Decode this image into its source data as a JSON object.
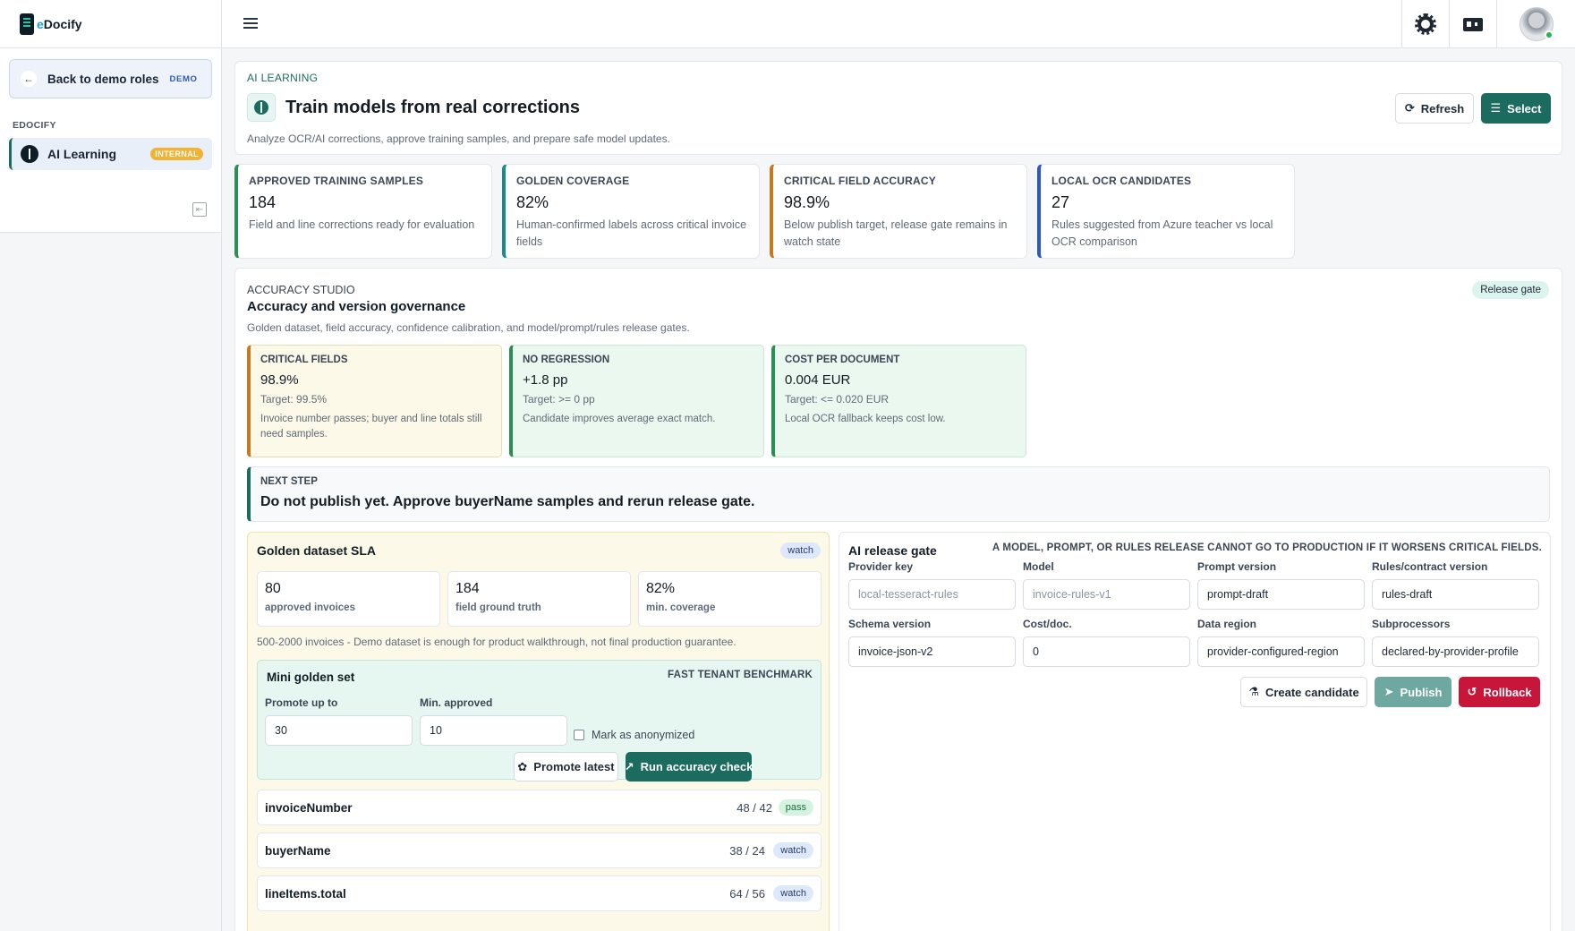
{
  "app": {
    "logo_prefix": "e",
    "logo_suffix": "Docify"
  },
  "sidebar": {
    "back_label": "Back to demo roles",
    "back_tag": "DEMO",
    "section": "EDOCIFY",
    "items": [
      {
        "label": "AI Learning",
        "tag": "INTERNAL",
        "icon": "brain-icon"
      }
    ]
  },
  "topbar": {
    "icons": [
      "menu-icon",
      "gear-icon",
      "id-card-icon",
      "avatar"
    ]
  },
  "header": {
    "kicker": "AI LEARNING",
    "title": "Train models from real corrections",
    "subtitle": "Analyze OCR/AI corrections, approve training samples, and prepare safe model updates.",
    "refresh_label": "Refresh",
    "select_label": "Select"
  },
  "stats": [
    {
      "label": "APPROVED TRAINING SAMPLES",
      "value": "184",
      "desc": "Field and line corrections ready for evaluation",
      "accent": "#2a8f55"
    },
    {
      "label": "GOLDEN COVERAGE",
      "value": "82%",
      "desc": "Human-confirmed labels across critical invoice fields",
      "accent": "#1b8a8a"
    },
    {
      "label": "CRITICAL FIELD ACCURACY",
      "value": "98.9%",
      "desc": "Below publish target, release gate remains in watch state",
      "accent": "#c47a1e"
    },
    {
      "label": "LOCAL OCR CANDIDATES",
      "value": "27",
      "desc": "Rules suggested from Azure teacher vs local OCR comparison",
      "accent": "#2b59c3"
    }
  ],
  "studio": {
    "kicker": "ACCURACY STUDIO",
    "title": "Accuracy and version governance",
    "subtitle": "Golden dataset, field accuracy, confidence calibration, and model/prompt/rules release gates.",
    "tag": "Release gate",
    "metrics": [
      {
        "label": "CRITICAL FIELDS",
        "value": "98.9%",
        "target": "Target: 99.5%",
        "desc": "Invoice number passes; buyer and line totals still need samples.",
        "bg": "#fdf9e8",
        "accent": "#c47a1e"
      },
      {
        "label": "NO REGRESSION",
        "value": "+1.8 pp",
        "target": "Target: >= 0 pp",
        "desc": "Candidate improves average exact match.",
        "bg": "#eaf8ef",
        "accent": "#2a8f55"
      },
      {
        "label": "COST PER DOCUMENT",
        "value": "0.004 EUR",
        "target": "Target: <= 0.020 EUR",
        "desc": "Local OCR fallback keeps cost low.",
        "bg": "#eaf8ef",
        "accent": "#2a8f55"
      }
    ],
    "next_step": {
      "label": "NEXT STEP",
      "text": "Do not publish yet. Approve buyerName samples and rerun release gate."
    }
  },
  "golden": {
    "title": "Golden dataset SLA",
    "status": "watch",
    "stats": [
      {
        "value": "80",
        "label": "approved invoices"
      },
      {
        "value": "184",
        "label": "field ground truth"
      },
      {
        "value": "82%",
        "label": "min. coverage"
      }
    ],
    "note": "500-2000 invoices - Demo dataset is enough for product walkthrough, not final production guarantee.",
    "mini": {
      "title": "Mini golden set",
      "tag": "FAST TENANT BENCHMARK",
      "promote_label": "Promote up to",
      "promote_value": "30",
      "min_label": "Min. approved",
      "min_value": "10",
      "anonymized_label": "Mark as anonymized",
      "promote_btn": "Promote latest",
      "run_btn": "Run accuracy check"
    },
    "fields": [
      {
        "name": "invoiceNumber",
        "count": "48 / 42",
        "status": "pass"
      },
      {
        "name": "buyerName",
        "count": "38 / 24",
        "status": "watch"
      },
      {
        "name": "lineItems.total",
        "count": "64 / 56",
        "status": "watch"
      }
    ]
  },
  "gate": {
    "title": "AI release gate",
    "warning": "A MODEL, PROMPT, OR RULES RELEASE CANNOT GO TO PRODUCTION IF IT WORSENS CRITICAL FIELDS.",
    "fields": [
      {
        "label": "Provider key",
        "placeholder": "local-tesseract-rules",
        "value": ""
      },
      {
        "label": "Model",
        "placeholder": "invoice-rules-v1",
        "value": ""
      },
      {
        "label": "Prompt version",
        "placeholder": "",
        "value": "prompt-draft"
      },
      {
        "label": "Rules/contract version",
        "placeholder": "",
        "value": "rules-draft"
      },
      {
        "label": "Schema version",
        "placeholder": "",
        "value": "invoice-json-v2"
      },
      {
        "label": "Cost/doc.",
        "placeholder": "",
        "value": "0"
      },
      {
        "label": "Data region",
        "placeholder": "",
        "value": "provider-configured-region"
      },
      {
        "label": "Subprocessors",
        "placeholder": "",
        "value": "declared-by-provider-profile"
      }
    ],
    "create_btn": "Create candidate",
    "publish_btn": "Publish",
    "rollback_btn": "Rollback"
  }
}
